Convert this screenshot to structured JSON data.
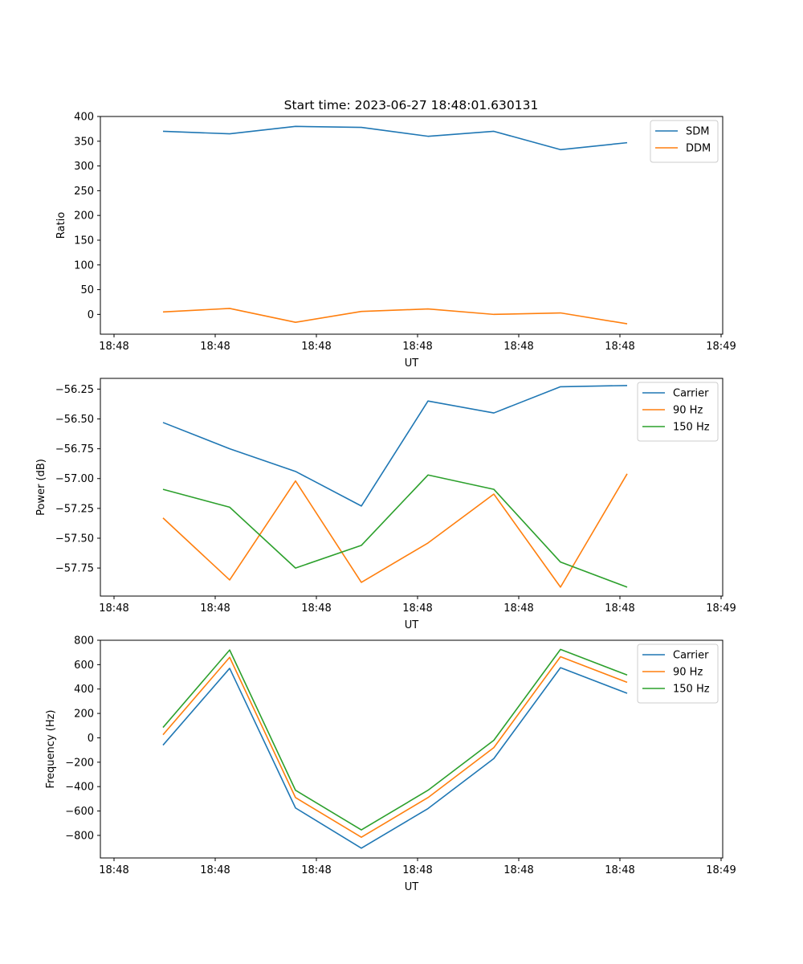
{
  "figure_title": "Start time: 2023-06-27 18:48:01.630131",
  "chart_data": [
    {
      "type": "line",
      "xlabel": "UT",
      "ylabel": "Ratio",
      "x_tick_labels": [
        "18:48",
        "18:48",
        "18:48",
        "18:48",
        "18:48",
        "18:48",
        "18:49"
      ],
      "yticks": [
        0,
        50,
        100,
        150,
        200,
        250,
        300,
        350,
        400
      ],
      "ylim": [
        -40,
        400
      ],
      "legend": "top-right",
      "grid": false,
      "series": [
        {
          "name": "SDM",
          "color": "#1f77b4",
          "values": [
            370,
            365,
            380,
            378,
            360,
            370,
            333,
            347
          ]
        },
        {
          "name": "DDM",
          "color": "#ff7f0e",
          "values": [
            5,
            12,
            -16,
            6,
            11,
            0,
            3,
            -19
          ]
        }
      ]
    },
    {
      "type": "line",
      "xlabel": "UT",
      "ylabel": "Power (dB)",
      "x_tick_labels": [
        "18:48",
        "18:48",
        "18:48",
        "18:48",
        "18:48",
        "18:48",
        "18:49"
      ],
      "yticks": [
        -57.75,
        -57.5,
        -57.25,
        -57.0,
        -56.75,
        -56.5,
        -56.25
      ],
      "ytick_labels": [
        "−57.75",
        "−57.50",
        "−57.25",
        "−57.00",
        "−56.75",
        "−56.50",
        "−56.25"
      ],
      "ylim": [
        -57.985,
        -56.16
      ],
      "legend": "top-right",
      "grid": false,
      "series": [
        {
          "name": "Carrier",
          "color": "#1f77b4",
          "values": [
            -56.53,
            -56.75,
            -56.94,
            -57.23,
            -56.35,
            -56.45,
            -56.23,
            -56.22
          ]
        },
        {
          "name": "90 Hz",
          "color": "#ff7f0e",
          "values": [
            -57.33,
            -57.85,
            -57.02,
            -57.87,
            -57.54,
            -57.13,
            -57.91,
            -56.96
          ]
        },
        {
          "name": "150 Hz",
          "color": "#2ca02c",
          "values": [
            -57.09,
            -57.24,
            -57.75,
            -57.56,
            -56.97,
            -57.09,
            -57.7,
            -57.91
          ]
        }
      ]
    },
    {
      "type": "line",
      "xlabel": "UT",
      "ylabel": "Frequency (Hz)",
      "x_tick_labels": [
        "18:48",
        "18:48",
        "18:48",
        "18:48",
        "18:48",
        "18:48",
        "18:49"
      ],
      "yticks": [
        -800,
        -600,
        -400,
        -200,
        0,
        200,
        400,
        600,
        800
      ],
      "ytick_labels": [
        "−800",
        "−600",
        "−400",
        "−200",
        "0",
        "200",
        "400",
        "600",
        "800"
      ],
      "ylim": [
        -985,
        800
      ],
      "legend": "top-right",
      "grid": false,
      "series": [
        {
          "name": "Carrier",
          "color": "#1f77b4",
          "values": [
            -60,
            570,
            -575,
            -905,
            -580,
            -170,
            575,
            365
          ]
        },
        {
          "name": "90 Hz",
          "color": "#ff7f0e",
          "values": [
            25,
            660,
            -490,
            -815,
            -490,
            -80,
            665,
            455
          ]
        },
        {
          "name": "150 Hz",
          "color": "#2ca02c",
          "values": [
            85,
            720,
            -430,
            -755,
            -430,
            -20,
            725,
            515
          ]
        }
      ]
    }
  ]
}
